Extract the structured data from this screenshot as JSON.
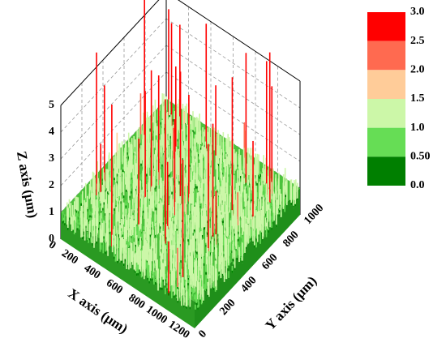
{
  "chart_data": {
    "type": "surface3d",
    "xlabel": "X axis (μm)",
    "ylabel": "Y axis (μm)",
    "zlabel": "Z axis (μm)",
    "xlim": [
      0,
      1200
    ],
    "xticks": [
      0,
      200,
      400,
      600,
      800,
      1000,
      1200
    ],
    "ylim": [
      0,
      1000
    ],
    "yticks": [
      0,
      200,
      400,
      600,
      800,
      1000
    ],
    "zlim": [
      0,
      5
    ],
    "zticks": [
      0,
      1,
      2,
      3,
      4,
      5
    ],
    "grid": true,
    "colorbar": {
      "levels": [
        {
          "value": 3,
          "label": "3.0"
        },
        {
          "value": 2.5,
          "label": "2.5"
        },
        {
          "value": 2,
          "label": "2.0"
        },
        {
          "value": 1.5,
          "label": "1.5"
        },
        {
          "value": 1,
          "label": "1.0"
        },
        {
          "value": 0.5,
          "label": "0.50"
        },
        {
          "value": 0,
          "label": "0.0"
        }
      ],
      "colors": [
        "#ff0000",
        "#ff6a50",
        "#ffcc99",
        "#ccf7a8",
        "#66dd55",
        "#007f00"
      ]
    }
  }
}
